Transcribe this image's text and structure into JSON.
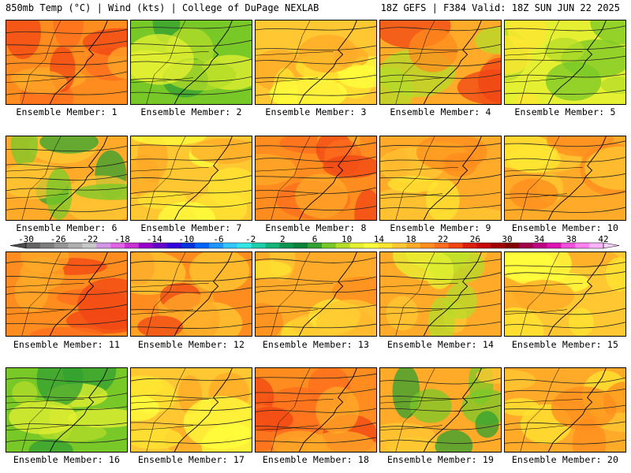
{
  "header": {
    "left": "850mb Temp (°C) | Wind (kts) | College of DuPage NEXLAB",
    "right": "18Z GEFS | F384 Valid: 18Z SUN JUN 22 2025"
  },
  "members": [
    {
      "label": "Ensemble Member: 1",
      "theme": "warm-red"
    },
    {
      "label": "Ensemble Member: 2",
      "theme": "cool-green"
    },
    {
      "label": "Ensemble Member: 3",
      "theme": "orange-yellow"
    },
    {
      "label": "Ensemble Member: 4",
      "theme": "orange-red-west"
    },
    {
      "label": "Ensemble Member: 5",
      "theme": "yellow-green"
    },
    {
      "label": "Ensemble Member: 6",
      "theme": "green-north"
    },
    {
      "label": "Ensemble Member: 7",
      "theme": "orange-yellow"
    },
    {
      "label": "Ensemble Member: 8",
      "theme": "warm-red"
    },
    {
      "label": "Ensemble Member: 9",
      "theme": "orange"
    },
    {
      "label": "Ensemble Member: 10",
      "theme": "orange"
    },
    {
      "label": "Ensemble Member: 11",
      "theme": "warm-red"
    },
    {
      "label": "Ensemble Member: 12",
      "theme": "orange-red"
    },
    {
      "label": "Ensemble Member: 13",
      "theme": "orange"
    },
    {
      "label": "Ensemble Member: 14",
      "theme": "orange-green-east"
    },
    {
      "label": "Ensemble Member: 15",
      "theme": "orange-yellow"
    },
    {
      "label": "Ensemble Member: 16",
      "theme": "cool-green"
    },
    {
      "label": "Ensemble Member: 17",
      "theme": "orange-yellow"
    },
    {
      "label": "Ensemble Member: 18",
      "theme": "warm-red"
    },
    {
      "label": "Ensemble Member: 19",
      "theme": "green-north"
    },
    {
      "label": "Ensemble Member: 20",
      "theme": "orange"
    }
  ],
  "colorbar": {
    "ticks": [
      "-30",
      "-26",
      "-22",
      "-18",
      "-14",
      "-10",
      "-6",
      "-2",
      "2",
      "6",
      "10",
      "14",
      "18",
      "22",
      "26",
      "30",
      "34",
      "38",
      "42"
    ],
    "colors": [
      "#646464",
      "#7d7d7d",
      "#969696",
      "#afafaf",
      "#c8c8c8",
      "#d296e6",
      "#e164e6",
      "#c832d2",
      "#9600c8",
      "#6400c8",
      "#3200dc",
      "#0032dc",
      "#0064ff",
      "#1e96ff",
      "#32c8ff",
      "#32e6e6",
      "#1ecdaa",
      "#14b478",
      "#0a9650",
      "#0a823c",
      "#32a032",
      "#78c828",
      "#b4dc28",
      "#e6f032",
      "#ffff3c",
      "#ffe632",
      "#ffc832",
      "#ffaa28",
      "#ff8c1e",
      "#ff6e1e",
      "#f04614",
      "#dc1e0a",
      "#c80a0a",
      "#a00000",
      "#820000",
      "#a0004b",
      "#be0082",
      "#dc14b4",
      "#f050dc",
      "#ff82f0",
      "#ffb4ff"
    ]
  }
}
